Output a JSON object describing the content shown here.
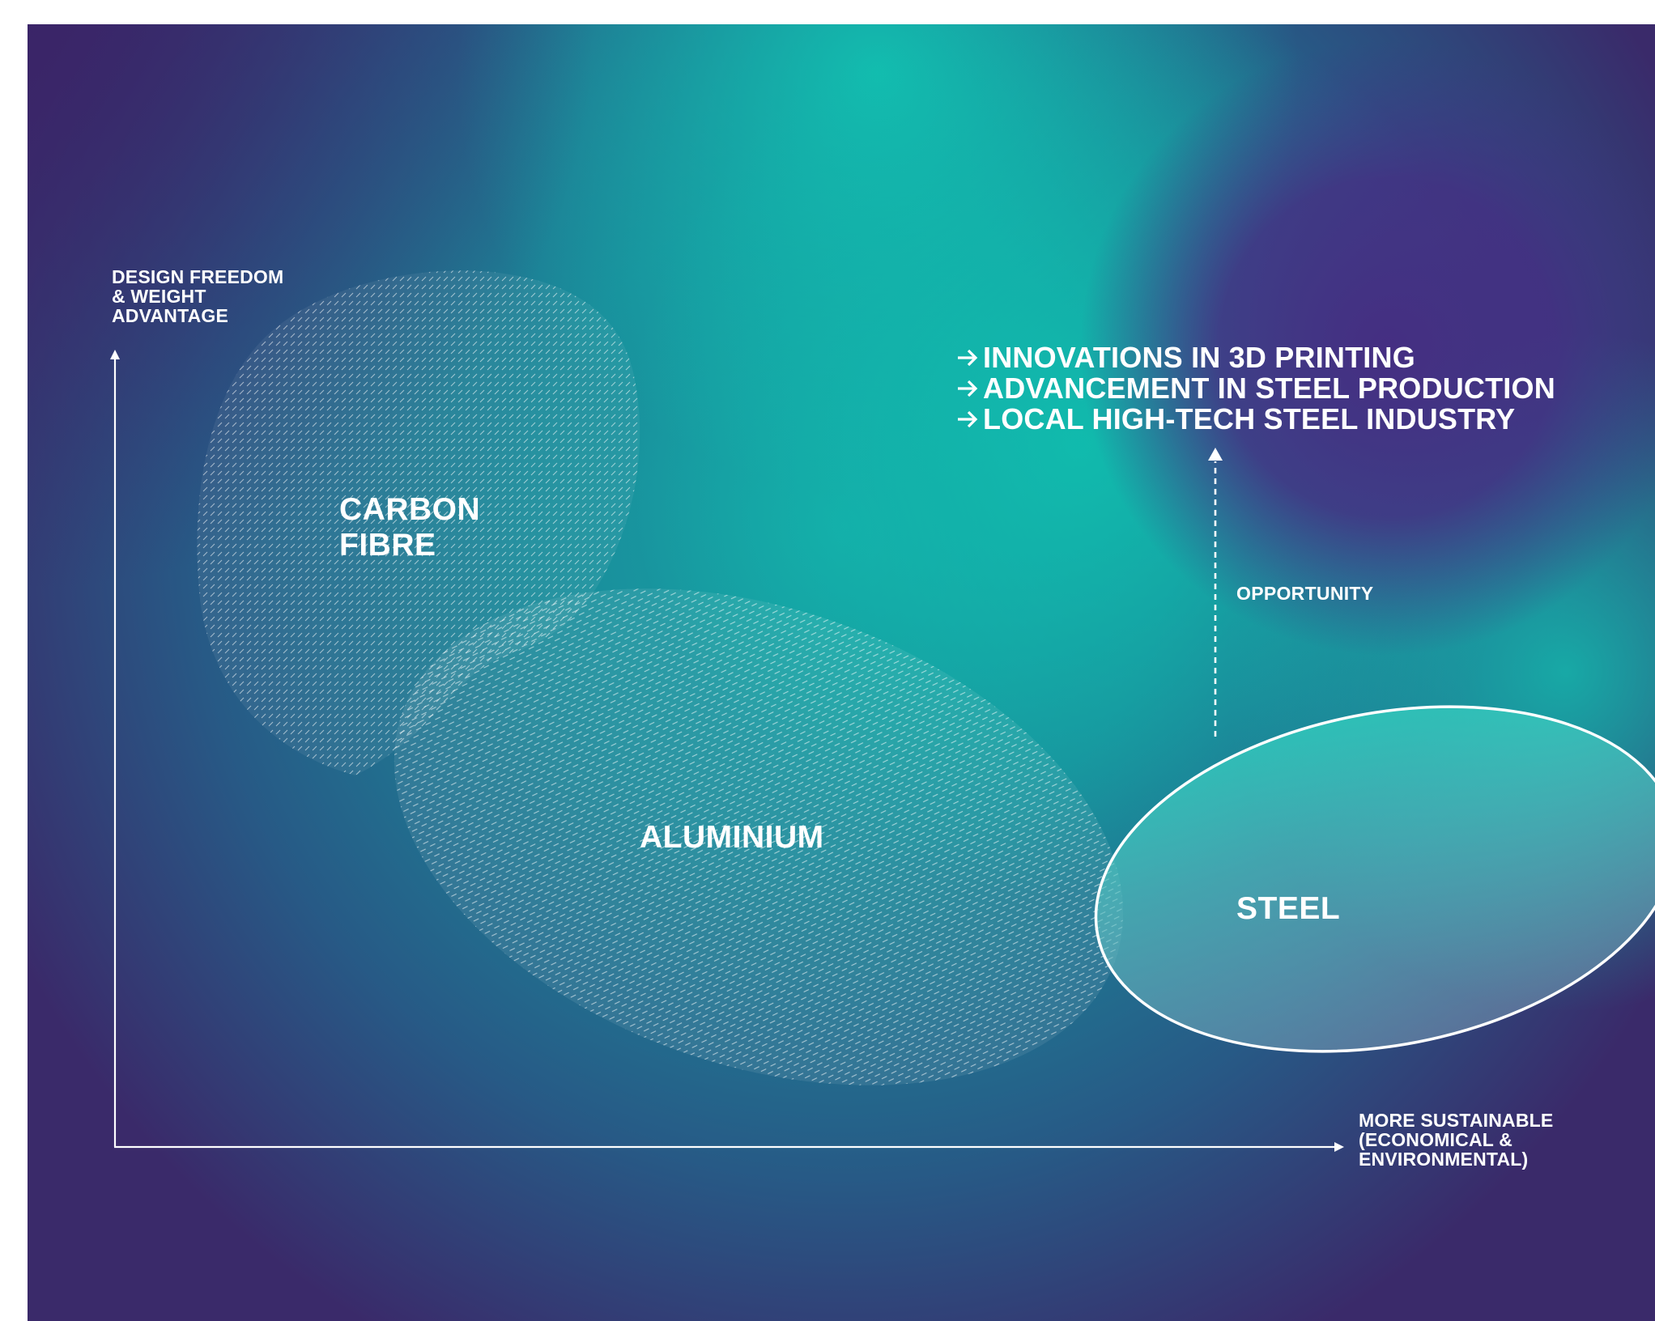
{
  "diagram": {
    "y_axis_label": [
      "DESIGN FREEDOM",
      "& WEIGHT",
      "ADVANTAGE"
    ],
    "x_axis_label": [
      "MORE SUSTAINABLE",
      "(ECONOMICAL &",
      "ENVIRONMENTAL)"
    ],
    "regions": [
      {
        "id": "carbon-fibre",
        "label": [
          "CARBON",
          "FIBRE"
        ],
        "style": "dotted"
      },
      {
        "id": "aluminium",
        "label": [
          "ALUMINIUM"
        ],
        "style": "dotted"
      },
      {
        "id": "steel",
        "label": [
          "STEEL"
        ],
        "style": "outlined"
      }
    ],
    "opportunity_label": "OPPORTUNITY",
    "outcomes": [
      "INNOVATIONS IN 3D PRINTING",
      "ADVANCEMENT IN STEEL PRODUCTION",
      "LOCAL HIGH-TECH STEEL INDUSTRY"
    ],
    "colors": {
      "background_dark": "#3b2a6b",
      "background_teal": "#13b8ae",
      "background_purple": "#452e82",
      "text": "#ffffff"
    }
  }
}
